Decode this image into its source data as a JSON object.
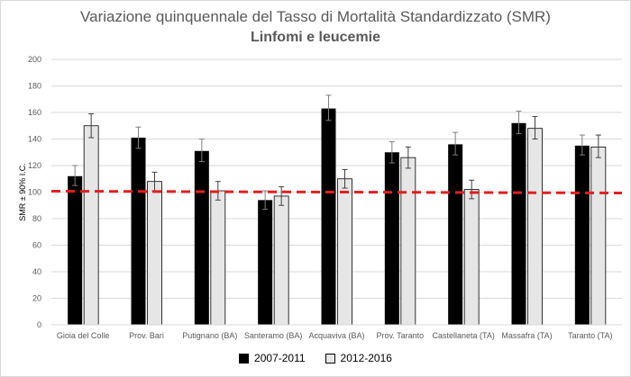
{
  "chart_data": {
    "type": "bar",
    "title": "Variazione quinquennale  del Tasso di Mortalità Standardizzato (SMR)",
    "subtitle": "Linfomi e leucemie",
    "xlabel": "",
    "ylabel": "SMR ± 90% I.C.",
    "ylim": [
      0,
      200
    ],
    "yticks": [
      "0",
      "20",
      "40",
      "60",
      "80",
      "100",
      "120",
      "140",
      "160",
      "180",
      "200"
    ],
    "reference_line": 100,
    "categories": [
      "Gioia del Colle",
      "Prov. Bari",
      "Putignano (BA)",
      "Santeramo (BA)",
      "Acquaviva (BA)",
      "Prov. Taranto",
      "Castellaneta (TA)",
      "Massafra (TA)",
      "Taranto (TA)"
    ],
    "series": [
      {
        "name": "2007-2011",
        "color": "#000000",
        "values": [
          112,
          141,
          131,
          94,
          163,
          130,
          136,
          152,
          135
        ],
        "err_low": [
          105,
          133,
          123,
          87,
          154,
          122,
          128,
          144,
          128
        ],
        "err_high": [
          120,
          149,
          140,
          101,
          173,
          138,
          145,
          161,
          143
        ]
      },
      {
        "name": "2012-2016",
        "color": "#e7e6e6",
        "values": [
          150,
          108,
          101,
          97,
          110,
          126,
          102,
          148,
          134
        ],
        "err_low": [
          141,
          101,
          94,
          90,
          103,
          118,
          95,
          140,
          126
        ],
        "err_high": [
          159,
          115,
          108,
          104,
          117,
          134,
          109,
          157,
          143
        ]
      }
    ],
    "grid": true,
    "legend_position": "bottom"
  }
}
